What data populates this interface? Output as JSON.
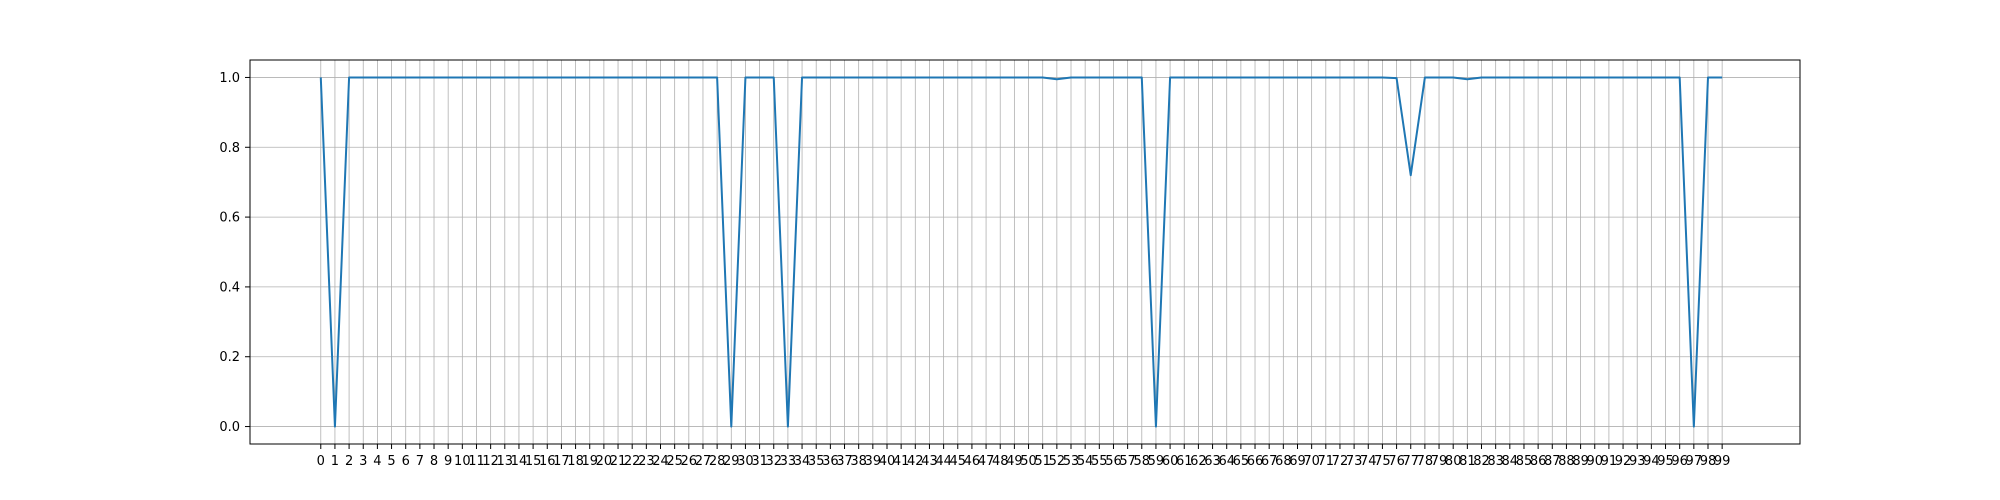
{
  "chart_data": {
    "type": "line",
    "title": "",
    "xlabel": "",
    "ylabel": "",
    "x": [
      0,
      1,
      2,
      3,
      4,
      5,
      6,
      7,
      8,
      9,
      10,
      11,
      12,
      13,
      14,
      15,
      16,
      17,
      18,
      19,
      20,
      21,
      22,
      23,
      24,
      25,
      26,
      27,
      28,
      29,
      30,
      31,
      32,
      33,
      34,
      35,
      36,
      37,
      38,
      39,
      40,
      41,
      42,
      43,
      44,
      45,
      46,
      47,
      48,
      49,
      50,
      51,
      52,
      53,
      54,
      55,
      56,
      57,
      58,
      59,
      60,
      61,
      62,
      63,
      64,
      65,
      66,
      67,
      68,
      69,
      70,
      71,
      72,
      73,
      74,
      75,
      76,
      77,
      78,
      79,
      80,
      81,
      82,
      83,
      84,
      85,
      86,
      87,
      88,
      89,
      90,
      91,
      92,
      93,
      94,
      95,
      96,
      97,
      98,
      99
    ],
    "xticks": [
      "0",
      "1",
      "2",
      "3",
      "4",
      "5",
      "6",
      "7",
      "8",
      "9",
      "10",
      "11",
      "12",
      "13",
      "14",
      "15",
      "16",
      "17",
      "18",
      "19",
      "20",
      "21",
      "22",
      "23",
      "24",
      "25",
      "26",
      "27",
      "28",
      "29",
      "30",
      "31",
      "32",
      "33",
      "34",
      "35",
      "36",
      "37",
      "38",
      "39",
      "40",
      "41",
      "42",
      "43",
      "44",
      "45",
      "46",
      "47",
      "48",
      "49",
      "50",
      "51",
      "52",
      "53",
      "54",
      "55",
      "56",
      "57",
      "58",
      "59",
      "60",
      "61",
      "62",
      "63",
      "64",
      "65",
      "66",
      "67",
      "68",
      "69",
      "70",
      "71",
      "72",
      "73",
      "74",
      "75",
      "76",
      "77",
      "78",
      "79",
      "80",
      "81",
      "82",
      "83",
      "84",
      "85",
      "86",
      "87",
      "88",
      "89",
      "90",
      "91",
      "92",
      "93",
      "94",
      "95",
      "96",
      "97",
      "98",
      "99"
    ],
    "yticks": [
      "0.0",
      "0.2",
      "0.4",
      "0.6",
      "0.8",
      "1.0"
    ],
    "ytick_values": [
      0.0,
      0.2,
      0.4,
      0.6,
      0.8,
      1.0
    ],
    "xlim": [
      -5,
      104.5
    ],
    "ylim": [
      -0.05,
      1.05
    ],
    "grid": true,
    "legend": "none",
    "series": [
      {
        "color": "#1f77b4",
        "values": [
          1.0,
          0.0,
          1.0,
          1.0,
          1.0,
          1.0,
          1.0,
          1.0,
          1.0,
          1.0,
          1.0,
          1.0,
          1.0,
          1.0,
          1.0,
          1.0,
          1.0,
          1.0,
          1.0,
          1.0,
          1.0,
          1.0,
          1.0,
          1.0,
          1.0,
          1.0,
          1.0,
          1.0,
          1.0,
          0.0,
          1.0,
          1.0,
          1.0,
          0.0,
          1.0,
          1.0,
          1.0,
          1.0,
          1.0,
          1.0,
          1.0,
          1.0,
          1.0,
          1.0,
          1.0,
          1.0,
          1.0,
          1.0,
          1.0,
          1.0,
          1.0,
          1.0,
          0.995,
          1.0,
          1.0,
          1.0,
          1.0,
          1.0,
          1.0,
          0.0,
          1.0,
          1.0,
          1.0,
          1.0,
          1.0,
          1.0,
          1.0,
          1.0,
          1.0,
          1.0,
          1.0,
          1.0,
          1.0,
          1.0,
          1.0,
          1.0,
          0.998,
          0.72,
          1.0,
          1.0,
          1.0,
          0.995,
          1.0,
          1.0,
          1.0,
          1.0,
          1.0,
          1.0,
          1.0,
          1.0,
          1.0,
          1.0,
          1.0,
          1.0,
          1.0,
          1.0,
          1.0,
          0.0,
          1.0,
          1.0
        ]
      }
    ],
    "grid_color": "#b0b0b0",
    "axis_color": "#000000"
  }
}
